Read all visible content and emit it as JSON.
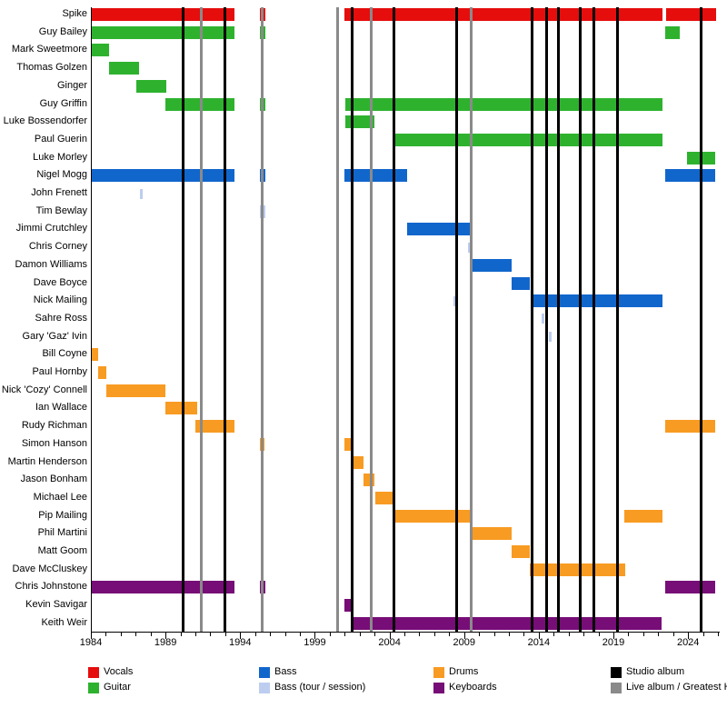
{
  "colors": {
    "vocals": "#e60d0d",
    "guitar": "#2eb22e",
    "bass": "#1166cc",
    "bass_session": "#bccdf0",
    "drums": "#f89b22",
    "keyboards": "#770d77",
    "studio": "#000000",
    "live": "#8a8a8a",
    "axis": "#000000"
  },
  "chart_data": {
    "type": "timeline",
    "title": "",
    "x_axis": {
      "start_year": 1984,
      "end_year": 2026,
      "major_tick_years": [
        1984,
        1989,
        1994,
        1999,
        2004,
        2009,
        2014,
        2019,
        2024
      ],
      "minor_tick_step": 1
    },
    "albums": {
      "studio_years": [
        1990.15,
        1993.0,
        2001.5,
        2004.3,
        2008.5,
        2013.55,
        2014.55,
        2015.3,
        2016.75,
        2017.7,
        2019.3,
        2024.85
      ],
      "live_years": [
        1991.4,
        1995.45,
        2000.5,
        2002.75,
        2009.5
      ]
    },
    "members": [
      {
        "name": "Spike",
        "bars": [
          [
            1984.05,
            1993.6,
            "vocals"
          ],
          [
            1995.3,
            1995.7,
            "vocals"
          ],
          [
            2001.0,
            2022.3,
            "vocals"
          ],
          [
            2022.55,
            2025.9,
            "vocals"
          ]
        ]
      },
      {
        "name": "Guy Bailey",
        "bars": [
          [
            1984.05,
            1993.6,
            "guitar"
          ],
          [
            1995.3,
            1995.7,
            "guitar"
          ],
          [
            2022.45,
            2023.45,
            "guitar"
          ]
        ]
      },
      {
        "name": "Mark Sweetmore",
        "bars": [
          [
            1984.05,
            1985.2,
            "guitar"
          ]
        ]
      },
      {
        "name": "Thomas Golzen",
        "bars": [
          [
            1985.2,
            1987.2,
            "guitar"
          ]
        ]
      },
      {
        "name": "Ginger",
        "bars": [
          [
            1987.05,
            1989.05,
            "guitar"
          ]
        ]
      },
      {
        "name": "Guy Griffin",
        "bars": [
          [
            1989.0,
            1993.6,
            "guitar"
          ],
          [
            1995.3,
            1995.7,
            "guitar"
          ],
          [
            2001.05,
            2022.3,
            "guitar"
          ]
        ]
      },
      {
        "name": "Luke Bossendorfer",
        "bars": [
          [
            2001.05,
            2003.0,
            "guitar"
          ]
        ]
      },
      {
        "name": "Paul Guerin",
        "bars": [
          [
            2004.3,
            2022.3,
            "guitar"
          ]
        ]
      },
      {
        "name": "Luke Morley",
        "bars": [
          [
            2023.95,
            2025.8,
            "guitar"
          ]
        ]
      },
      {
        "name": "Nigel Mogg",
        "bars": [
          [
            1984.05,
            1993.6,
            "bass"
          ],
          [
            1995.3,
            1995.7,
            "bass"
          ],
          [
            2001.0,
            2005.2,
            "bass"
          ],
          [
            2022.45,
            2025.8,
            "bass"
          ]
        ]
      },
      {
        "name": "John Frenett",
        "bars": [
          [
            1987.3,
            1987.45,
            "bass_session"
          ]
        ]
      },
      {
        "name": "Tim Bewlay",
        "bars": [
          [
            1995.3,
            1995.7,
            "bass_session"
          ]
        ]
      },
      {
        "name": "Jimmi Crutchley",
        "bars": [
          [
            2005.2,
            2009.4,
            "bass"
          ]
        ]
      },
      {
        "name": "Chris Corney",
        "bars": [
          [
            2009.25,
            2009.4,
            "bass_session"
          ]
        ]
      },
      {
        "name": "Damon Williams",
        "bars": [
          [
            2009.45,
            2012.2,
            "bass"
          ]
        ]
      },
      {
        "name": "Dave Boyce",
        "bars": [
          [
            2012.2,
            2013.4,
            "bass"
          ]
        ]
      },
      {
        "name": "Nick Mailing",
        "bars": [
          [
            2008.3,
            2008.45,
            "bass_session"
          ],
          [
            2013.6,
            2022.3,
            "bass"
          ]
        ]
      },
      {
        "name": "Sahre Ross",
        "bars": [
          [
            2014.2,
            2014.35,
            "bass_session"
          ]
        ]
      },
      {
        "name": "Gary 'Gaz' Ivin",
        "bars": [
          [
            2014.7,
            2014.85,
            "bass_session"
          ]
        ]
      },
      {
        "name": "Bill Coyne",
        "bars": [
          [
            1984.05,
            1984.5,
            "drums"
          ]
        ]
      },
      {
        "name": "Paul Hornby",
        "bars": [
          [
            1984.5,
            1985.05,
            "drums"
          ]
        ]
      },
      {
        "name": "Nick 'Cozy' Connell",
        "bars": [
          [
            1985.05,
            1989.0,
            "drums"
          ]
        ]
      },
      {
        "name": "Ian Wallace",
        "bars": [
          [
            1989.0,
            1991.1,
            "drums"
          ]
        ]
      },
      {
        "name": "Rudy Richman",
        "bars": [
          [
            1991.0,
            1993.6,
            "drums"
          ],
          [
            2022.45,
            2025.8,
            "drums"
          ]
        ]
      },
      {
        "name": "Simon Hanson",
        "bars": [
          [
            1995.3,
            1995.65,
            "drums"
          ],
          [
            2001.0,
            2001.5,
            "drums"
          ]
        ]
      },
      {
        "name": "Martin Henderson",
        "bars": [
          [
            2001.5,
            2002.25,
            "drums"
          ]
        ]
      },
      {
        "name": "Jason Bonham",
        "bars": [
          [
            2002.25,
            2003.0,
            "drums"
          ]
        ]
      },
      {
        "name": "Michael Lee",
        "bars": [
          [
            2003.05,
            2004.3,
            "drums"
          ]
        ]
      },
      {
        "name": "Pip Mailing",
        "bars": [
          [
            2004.3,
            2009.4,
            "drums"
          ],
          [
            2019.7,
            2022.3,
            "drums"
          ]
        ]
      },
      {
        "name": "Phil Martini",
        "bars": [
          [
            2009.4,
            2012.2,
            "drums"
          ]
        ]
      },
      {
        "name": "Matt Goom",
        "bars": [
          [
            2012.2,
            2013.4,
            "drums"
          ]
        ]
      },
      {
        "name": "Dave McCluskey",
        "bars": [
          [
            2013.4,
            2019.8,
            "drums"
          ]
        ]
      },
      {
        "name": "Chris Johnstone",
        "bars": [
          [
            1984.05,
            1993.6,
            "keyboards"
          ],
          [
            1995.3,
            1995.7,
            "keyboards"
          ],
          [
            2022.45,
            2025.8,
            "keyboards"
          ]
        ]
      },
      {
        "name": "Kevin Savigar",
        "bars": [
          [
            2001.0,
            2001.5,
            "keyboards"
          ]
        ]
      },
      {
        "name": "Keith Weir",
        "bars": [
          [
            2001.45,
            2022.25,
            "keyboards"
          ]
        ]
      }
    ],
    "legend": [
      {
        "label": "Vocals",
        "color_key": "vocals"
      },
      {
        "label": "Guitar",
        "color_key": "guitar"
      },
      {
        "label": "Bass",
        "color_key": "bass"
      },
      {
        "label": "Bass (tour / session)",
        "color_key": "bass_session"
      },
      {
        "label": "Drums",
        "color_key": "drums"
      },
      {
        "label": "Keyboards",
        "color_key": "keyboards"
      },
      {
        "label": "Studio album",
        "color_key": "studio"
      },
      {
        "label": "Live album / Greatest Hits",
        "color_key": "live"
      }
    ]
  }
}
